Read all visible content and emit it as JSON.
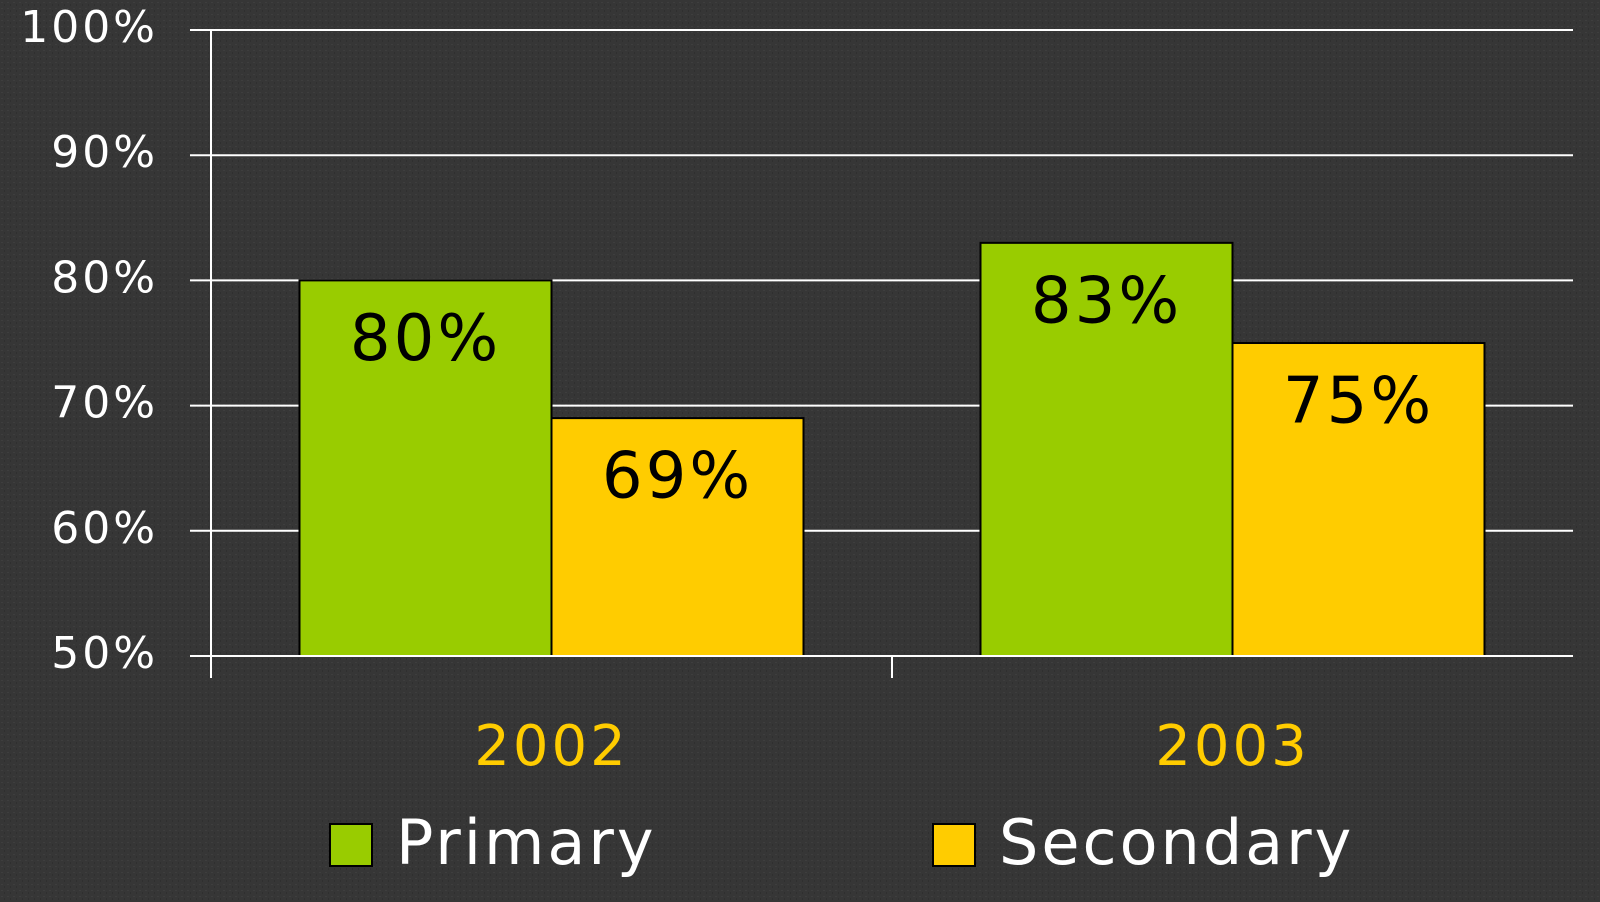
{
  "chart_data": {
    "type": "bar",
    "categories": [
      "2002",
      "2003"
    ],
    "series": [
      {
        "name": "Primary",
        "color": "#99cc00",
        "values": [
          80,
          83
        ],
        "value_labels": [
          "80%",
          "83%"
        ]
      },
      {
        "name": "Secondary",
        "color": "#ffcc00",
        "values": [
          69,
          75
        ],
        "value_labels": [
          "69%",
          "75%"
        ]
      }
    ],
    "ylim": [
      50,
      100
    ],
    "yticks": [
      {
        "value": 50,
        "label": "50%"
      },
      {
        "value": 60,
        "label": "60%"
      },
      {
        "value": 70,
        "label": "70%"
      },
      {
        "value": 80,
        "label": "80%"
      },
      {
        "value": 90,
        "label": "90%"
      },
      {
        "value": 100,
        "label": "100%"
      }
    ],
    "grid": true
  }
}
